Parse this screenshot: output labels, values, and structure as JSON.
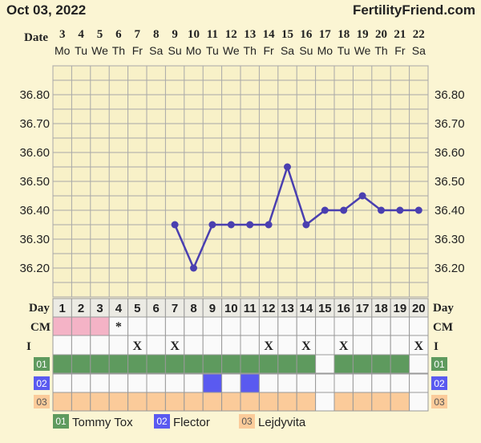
{
  "header": {
    "date": "Oct 03, 2022",
    "brand": "FertilityFriend.com"
  },
  "labels": {
    "date": "Date",
    "day": "Day",
    "cm": "CM",
    "intercourse": "I"
  },
  "chart_data": {
    "type": "line",
    "dates": [
      "3",
      "4",
      "5",
      "6",
      "7",
      "8",
      "9",
      "10",
      "11",
      "12",
      "13",
      "14",
      "15",
      "16",
      "17",
      "18",
      "19",
      "20",
      "21",
      "22"
    ],
    "weekdays": [
      "Mo",
      "Tu",
      "We",
      "Th",
      "Fr",
      "Sa",
      "Su",
      "Mo",
      "Tu",
      "We",
      "Th",
      "Fr",
      "Sa",
      "Su",
      "Mo",
      "Tu",
      "We",
      "Th",
      "Fr",
      "Sa"
    ],
    "cycle_days": [
      "1",
      "2",
      "3",
      "4",
      "5",
      "6",
      "7",
      "8",
      "9",
      "10",
      "11",
      "12",
      "13",
      "14",
      "15",
      "16",
      "17",
      "18",
      "19",
      "20"
    ],
    "temps": [
      null,
      null,
      null,
      null,
      null,
      null,
      36.35,
      36.2,
      36.35,
      36.35,
      36.35,
      36.35,
      36.55,
      36.35,
      36.4,
      36.4,
      36.45,
      36.4,
      36.4,
      36.4
    ],
    "yticks": [
      "36.80",
      "36.70",
      "36.60",
      "36.50",
      "36.40",
      "36.30",
      "36.20"
    ],
    "ylim": [
      36.1,
      36.9
    ],
    "line_color": "#4a3fb0",
    "cm": [
      "pink",
      "pink",
      "pink",
      "*",
      "",
      "",
      "",
      "",
      "",
      "",
      "",
      "",
      "",
      "",
      "",
      "",
      "",
      "",
      "",
      ""
    ],
    "intercourse": [
      "",
      "",
      "",
      "",
      "X",
      "",
      "X",
      "",
      "",
      "",
      "",
      "X",
      "",
      "X",
      "",
      "X",
      "",
      "",
      "",
      "X"
    ],
    "medications": [
      {
        "code": "01",
        "name": "Tommy Tox",
        "color": "#5e9a5e",
        "days": [
          1,
          1,
          1,
          1,
          1,
          1,
          1,
          1,
          1,
          1,
          1,
          1,
          1,
          1,
          0,
          1,
          1,
          1,
          1,
          0
        ]
      },
      {
        "code": "02",
        "name": "Flector",
        "color": "#5a5af0",
        "days": [
          0,
          0,
          0,
          0,
          0,
          0,
          0,
          0,
          1,
          0,
          1,
          0,
          0,
          0,
          0,
          0,
          0,
          0,
          0,
          0
        ]
      },
      {
        "code": "03",
        "name": "Lejdyvita",
        "color": "#fbcb9a",
        "days": [
          1,
          1,
          1,
          1,
          1,
          1,
          1,
          1,
          1,
          1,
          1,
          1,
          1,
          1,
          0,
          1,
          1,
          1,
          1,
          0
        ]
      }
    ]
  }
}
